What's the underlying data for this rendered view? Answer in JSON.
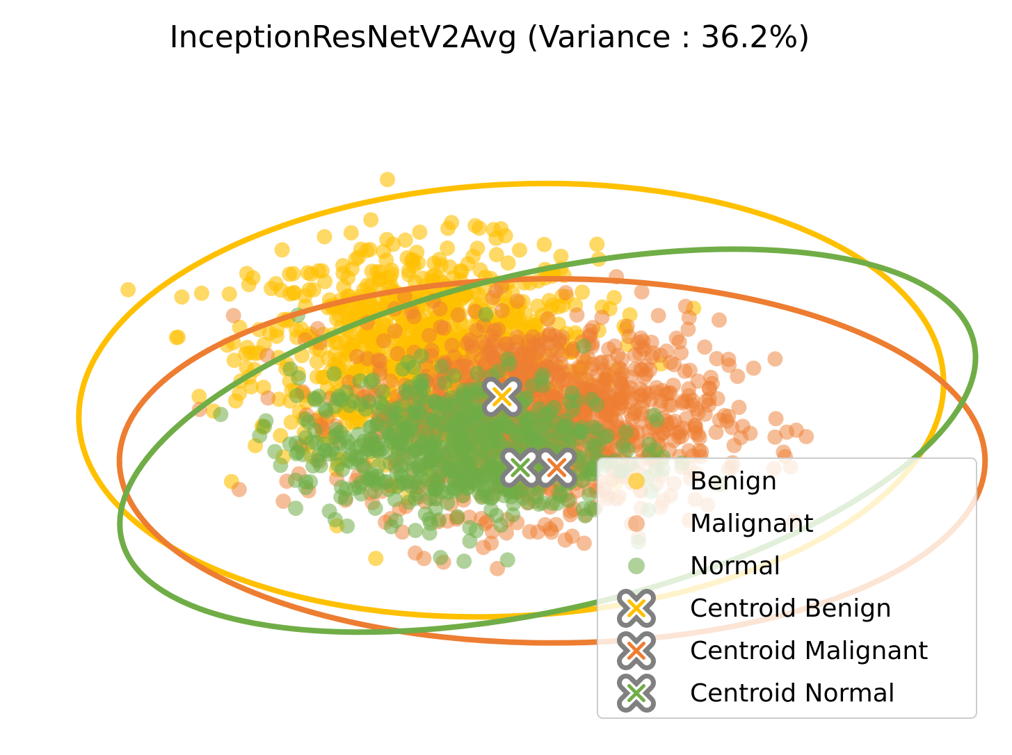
{
  "chart_data": {
    "type": "scatter",
    "title": "InceptionResNetV2Avg (Variance : 36.2%)",
    "xlabel": "",
    "ylabel": "",
    "axes_visible": false,
    "grid": false,
    "legend_position": "bottom-right",
    "xlim": [
      -10,
      10
    ],
    "ylim": [
      -10,
      10
    ],
    "series": [
      {
        "name": "Benign",
        "color": "#FFC000",
        "alpha": 0.6,
        "cluster": {
          "center": [
            -1.9,
            1.9
          ],
          "spread": [
            3.4,
            2.8
          ],
          "count": 900
        }
      },
      {
        "name": "Malignant",
        "color": "#ED7D31",
        "alpha": 0.5,
        "cluster": {
          "center": [
            0.6,
            -0.1
          ],
          "spread": [
            3.6,
            2.6
          ],
          "count": 1100
        }
      },
      {
        "name": "Normal",
        "color": "#70AD47",
        "alpha": 0.55,
        "cluster": {
          "center": [
            -1.2,
            -1.0
          ],
          "spread": [
            3.2,
            2.0
          ],
          "count": 650
        }
      }
    ],
    "centroids": [
      {
        "name": "Centroid Benign",
        "x": -0.2,
        "y": 0.5,
        "color": "#FFC000"
      },
      {
        "name": "Centroid Malignant",
        "x": 1.0,
        "y": -1.6,
        "color": "#ED7D31"
      },
      {
        "name": "Centroid Normal",
        "x": 0.2,
        "y": -1.6,
        "color": "#70AD47"
      }
    ],
    "ellipses": [
      {
        "series": "Benign",
        "center": [
          0.0,
          0.4
        ],
        "semi_axes": [
          9.5,
          6.4
        ],
        "angle_deg": -3,
        "color": "#FFC000"
      },
      {
        "series": "Malignant",
        "center": [
          0.9,
          -1.4
        ],
        "semi_axes": [
          9.5,
          5.4
        ],
        "angle_deg": 0,
        "color": "#ED7D31"
      },
      {
        "series": "Normal",
        "center": [
          0.8,
          -0.8
        ],
        "semi_axes": [
          9.6,
          5.0
        ],
        "angle_deg": -13,
        "color": "#70AD47"
      }
    ],
    "centroid_marker_edge_color": "#808080"
  }
}
